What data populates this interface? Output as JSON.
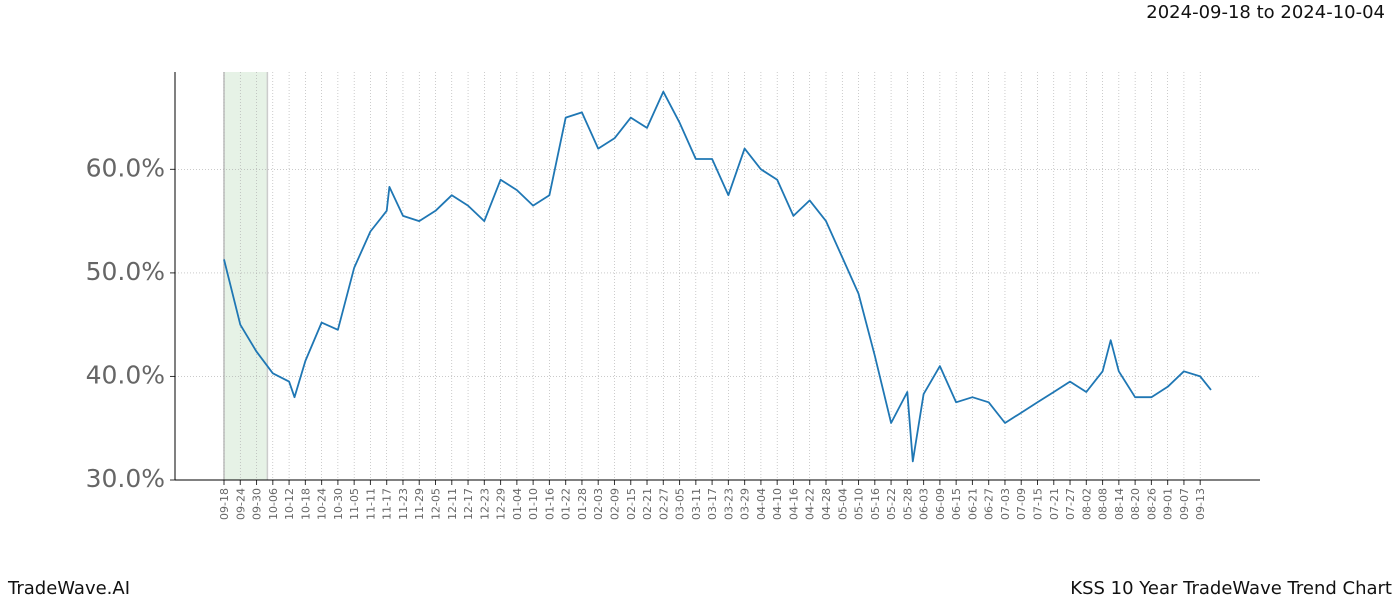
{
  "chart_data": {
    "type": "line",
    "header": "2024-09-18 to 2024-10-04",
    "footer_left": "TradeWave.AI",
    "footer_right": "KSS 10 Year TradeWave Trend Chart",
    "color": "#1f77b4",
    "highlight": {
      "start": "09-18",
      "end": "10-04",
      "color": "#e6f2e6"
    },
    "x": [
      "09-18",
      "09-24",
      "09-30",
      "10-06",
      "10-12",
      "10-14",
      "10-18",
      "10-24",
      "10-30",
      "11-05",
      "11-11",
      "11-17",
      "11-18",
      "11-23",
      "11-29",
      "12-05",
      "12-11",
      "12-17",
      "12-23",
      "12-29",
      "01-04",
      "01-10",
      "01-16",
      "01-22",
      "01-28",
      "02-03",
      "02-09",
      "02-15",
      "02-21",
      "02-27",
      "03-05",
      "03-11",
      "03-17",
      "03-23",
      "03-29",
      "04-04",
      "04-10",
      "04-16",
      "04-22",
      "04-28",
      "05-04",
      "05-10",
      "05-16",
      "05-22",
      "05-28",
      "05-30",
      "06-03",
      "06-09",
      "06-15",
      "06-21",
      "06-27",
      "07-03",
      "07-09",
      "07-15",
      "07-21",
      "07-27",
      "08-02",
      "08-08",
      "08-11",
      "08-14",
      "08-20",
      "08-26",
      "09-01",
      "09-07",
      "09-13",
      "09-17"
    ],
    "values": [
      51.3,
      45,
      42.4,
      40.3,
      39.5,
      38,
      41.5,
      45.2,
      44.5,
      50.5,
      54,
      56,
      58.3,
      55.5,
      55,
      56,
      57.5,
      56.5,
      55,
      59,
      58,
      56.5,
      57.5,
      65,
      65.5,
      62,
      63,
      65,
      64,
      67.5,
      64.5,
      61,
      61,
      57.5,
      62,
      60,
      59,
      55.5,
      57,
      55,
      51.5,
      48,
      42,
      35.5,
      38.5,
      31.8,
      38.3,
      41,
      37.5,
      38,
      37.5,
      35.5,
      36.5,
      37.5,
      38.5,
      39.5,
      38.5,
      40.5,
      43.5,
      40.5,
      38,
      38,
      39,
      40.5,
      40,
      38.7
    ],
    "xticks": [
      "09-18",
      "09-24",
      "09-30",
      "10-06",
      "10-12",
      "10-18",
      "10-24",
      "10-30",
      "11-05",
      "11-11",
      "11-17",
      "11-23",
      "11-29",
      "12-05",
      "12-11",
      "12-17",
      "12-23",
      "12-29",
      "01-04",
      "01-10",
      "01-16",
      "01-22",
      "01-28",
      "02-03",
      "02-09",
      "02-15",
      "02-21",
      "02-27",
      "03-05",
      "03-11",
      "03-17",
      "03-23",
      "03-29",
      "04-04",
      "04-10",
      "04-16",
      "04-22",
      "04-28",
      "05-04",
      "05-10",
      "05-16",
      "05-22",
      "05-28",
      "06-03",
      "06-09",
      "06-15",
      "06-21",
      "06-27",
      "07-03",
      "07-09",
      "07-15",
      "07-21",
      "07-27",
      "08-02",
      "08-08",
      "08-14",
      "08-20",
      "08-26",
      "09-01",
      "09-07",
      "09-13"
    ],
    "ylim": [
      30,
      69.4
    ],
    "yticks": [
      {
        "value": 30,
        "label": "30.0%"
      },
      {
        "value": 40,
        "label": "40.0%"
      },
      {
        "value": 50,
        "label": "50.0%"
      },
      {
        "value": 60,
        "label": "60.0%"
      }
    ],
    "grid": true
  }
}
